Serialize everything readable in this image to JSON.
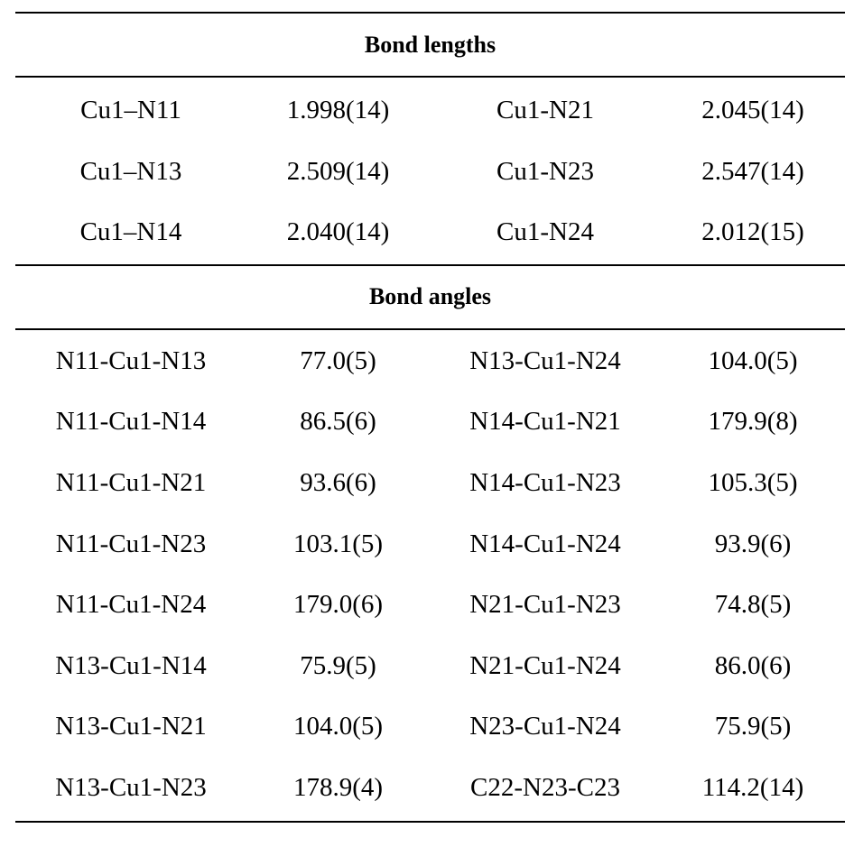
{
  "sections": [
    {
      "title": "Bond lengths",
      "rows": [
        [
          "Cu1–N11",
          "1.998(14)",
          "Cu1-N21",
          "2.045(14)"
        ],
        [
          "Cu1–N13",
          "2.509(14)",
          "Cu1-N23",
          "2.547(14)"
        ],
        [
          "Cu1–N14",
          "2.040(14)",
          "Cu1-N24",
          "2.012(15)"
        ]
      ]
    },
    {
      "title": "Bond angles",
      "rows": [
        [
          "N11-Cu1-N13",
          "77.0(5)",
          "N13-Cu1-N24",
          "104.0(5)"
        ],
        [
          "N11-Cu1-N14",
          "86.5(6)",
          "N14-Cu1-N21",
          "179.9(8)"
        ],
        [
          "N11-Cu1-N21",
          "93.6(6)",
          "N14-Cu1-N23",
          "105.3(5)"
        ],
        [
          "N11-Cu1-N23",
          "103.1(5)",
          "N14-Cu1-N24",
          "93.9(6)"
        ],
        [
          "N11-Cu1-N24",
          "179.0(6)",
          "N21-Cu1-N23",
          "74.8(5)"
        ],
        [
          "N13-Cu1-N14",
          "75.9(5)",
          "N21-Cu1-N24",
          "86.0(6)"
        ],
        [
          "N13-Cu1-N21",
          "104.0(5)",
          "N23-Cu1-N24",
          "75.9(5)"
        ],
        [
          "N13-Cu1-N23",
          "178.9(4)",
          "C22-N23-C23",
          "114.2(14)"
        ]
      ]
    }
  ]
}
